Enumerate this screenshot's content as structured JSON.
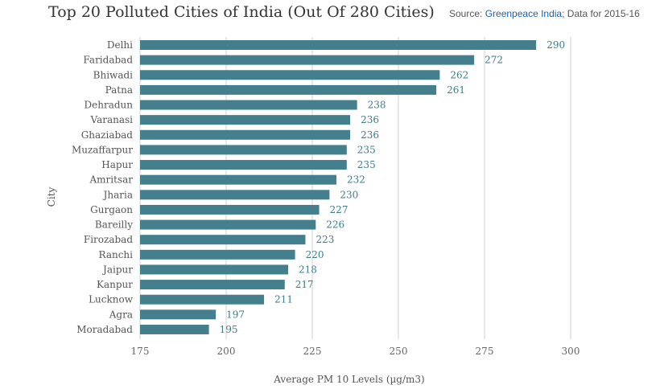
{
  "header": {
    "title": "Top 20 Polluted Cities of India (Out Of 280 Cities)",
    "source_prefix": "Source: ",
    "source_link": "Greenpeace India",
    "source_suffix": "; Data for 2015-16"
  },
  "colors": {
    "bar": "#437f8c",
    "data_label": "#3f7d8a",
    "grid": "#d0d0d0",
    "link": "#1a5fb4"
  },
  "chart_data": {
    "type": "bar",
    "orientation": "horizontal",
    "title": "Top 20 Polluted Cities of India (Out Of 280 Cities)",
    "xlabel": "Average PM 10 Levels (µg/m3)",
    "ylabel": "City",
    "xlim": [
      175,
      300
    ],
    "xticks": [
      175,
      200,
      225,
      250,
      275,
      300
    ],
    "grid": true,
    "categories": [
      "Delhi",
      "Faridabad",
      "Bhiwadi",
      "Patna",
      "Dehradun",
      "Varanasi",
      "Ghaziabad",
      "Muzaffarpur",
      "Hapur",
      "Amritsar",
      "Jharia",
      "Gurgaon",
      "Bareilly",
      "Firozabad",
      "Ranchi",
      "Jaipur",
      "Kanpur",
      "Lucknow",
      "Agra",
      "Moradabad"
    ],
    "values": [
      290,
      272,
      262,
      261,
      238,
      236,
      236,
      235,
      235,
      232,
      230,
      227,
      226,
      223,
      220,
      218,
      217,
      211,
      197,
      195
    ]
  }
}
